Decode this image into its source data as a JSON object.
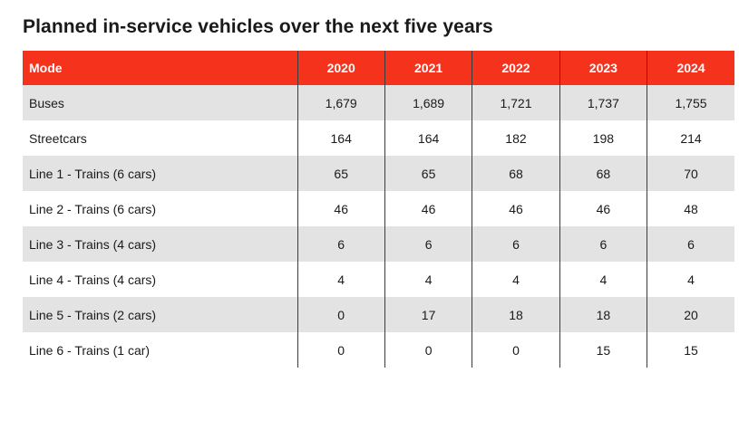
{
  "title": "Planned in-service vehicles over the next five years",
  "colors": {
    "header_bg": "#F5331D",
    "header_text": "#FFFFFF",
    "row_alt_bg": "#E3E3E3",
    "row_bg": "#FFFFFF",
    "divider": "#3C3C3C",
    "text": "#1A1A1A"
  },
  "table": {
    "columns": [
      "Mode",
      "2020",
      "2021",
      "2022",
      "2023",
      "2024"
    ],
    "rows": [
      {
        "mode": "Buses",
        "values": [
          "1,679",
          "1,689",
          "1,721",
          "1,737",
          "1,755"
        ]
      },
      {
        "mode": "Streetcars",
        "values": [
          "164",
          "164",
          "182",
          "198",
          "214"
        ]
      },
      {
        "mode": "Line 1 - Trains (6 cars)",
        "values": [
          "65",
          "65",
          "68",
          "68",
          "70"
        ]
      },
      {
        "mode": "Line 2 - Trains (6 cars)",
        "values": [
          "46",
          "46",
          "46",
          "46",
          "48"
        ]
      },
      {
        "mode": "Line 3 - Trains (4 cars)",
        "values": [
          "6",
          "6",
          "6",
          "6",
          "6"
        ]
      },
      {
        "mode": "Line 4 - Trains (4 cars)",
        "values": [
          "4",
          "4",
          "4",
          "4",
          "4"
        ]
      },
      {
        "mode": "Line 5 - Trains (2 cars)",
        "values": [
          "0",
          "17",
          "18",
          "18",
          "20"
        ]
      },
      {
        "mode": "Line 6 - Trains (1 car)",
        "values": [
          "0",
          "0",
          "0",
          "15",
          "15"
        ]
      }
    ]
  },
  "chart_data": {
    "type": "table",
    "title": "Planned in-service vehicles over the next five years",
    "categories": [
      "2020",
      "2021",
      "2022",
      "2023",
      "2024"
    ],
    "series": [
      {
        "name": "Buses",
        "values": [
          1679,
          1689,
          1721,
          1737,
          1755
        ]
      },
      {
        "name": "Streetcars",
        "values": [
          164,
          164,
          182,
          198,
          214
        ]
      },
      {
        "name": "Line 1 - Trains (6 cars)",
        "values": [
          65,
          65,
          68,
          68,
          70
        ]
      },
      {
        "name": "Line 2 - Trains (6 cars)",
        "values": [
          46,
          46,
          46,
          46,
          48
        ]
      },
      {
        "name": "Line 3 - Trains (4 cars)",
        "values": [
          6,
          6,
          6,
          6,
          6
        ]
      },
      {
        "name": "Line 4 - Trains (4 cars)",
        "values": [
          4,
          4,
          4,
          4,
          4
        ]
      },
      {
        "name": "Line 5 - Trains (2 cars)",
        "values": [
          0,
          17,
          18,
          18,
          20
        ]
      },
      {
        "name": "Line 6 - Trains (1 car)",
        "values": [
          0,
          0,
          0,
          15,
          15
        ]
      }
    ],
    "layout": {
      "header_position": "top",
      "grid": "vertical-dividers-only",
      "row_striping": "odd-rows-gray"
    }
  }
}
